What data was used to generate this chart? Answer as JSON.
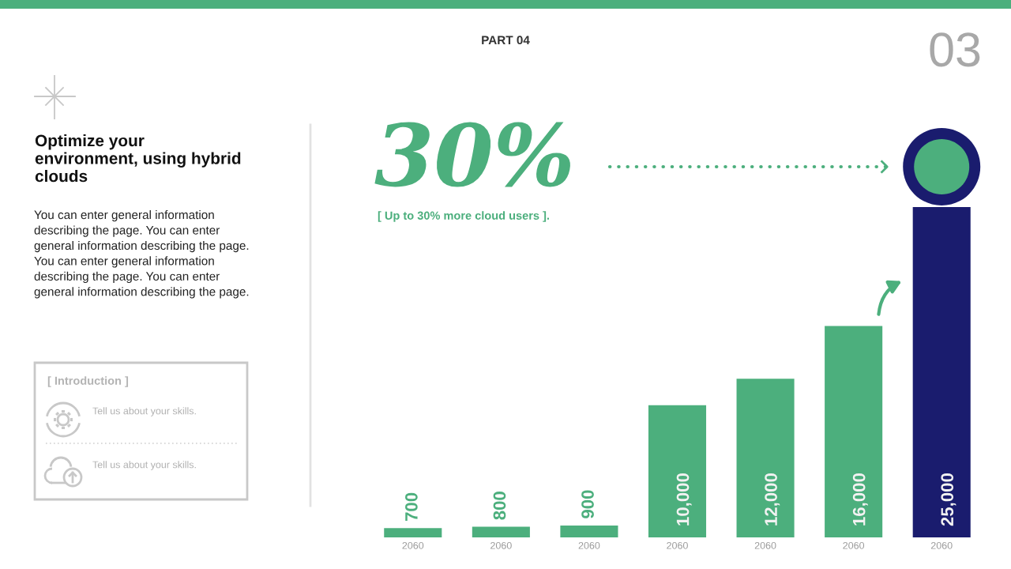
{
  "chart_data": {
    "type": "bar",
    "title": "Optimize your\nenvironment, using hybrid\nclouds",
    "subtitle": "You can enter general information\ndescribing the page. You can enter\ngeneral information describing the page.\nYou can enter general information\ndescribing the page. You can enter\ngeneral information describing the page.",
    "categories": [
      "2060",
      "2060",
      "2060",
      "2060",
      "2060",
      "2060",
      "2060"
    ],
    "values": [
      700,
      800,
      900,
      10000,
      12000,
      16000,
      25000
    ],
    "colors": [
      "#4caf7d",
      "#4caf7d",
      "#4caf7d",
      "#4caf7d",
      "#4caf7d",
      "#4caf7d",
      "#1a1c6e"
    ],
    "value_labels": [
      "700",
      "800",
      "900",
      "10,000",
      "12,000",
      "16,000",
      "25,000"
    ],
    "tick_labels": "x",
    "annotations": [
      "PART 04",
      "03",
      "30%",
      "[ Up to 30% more cloud users ].",
      "[ Introduction ]",
      "Tell us about your skills.",
      "Tell us about your skills."
    ]
  }
}
